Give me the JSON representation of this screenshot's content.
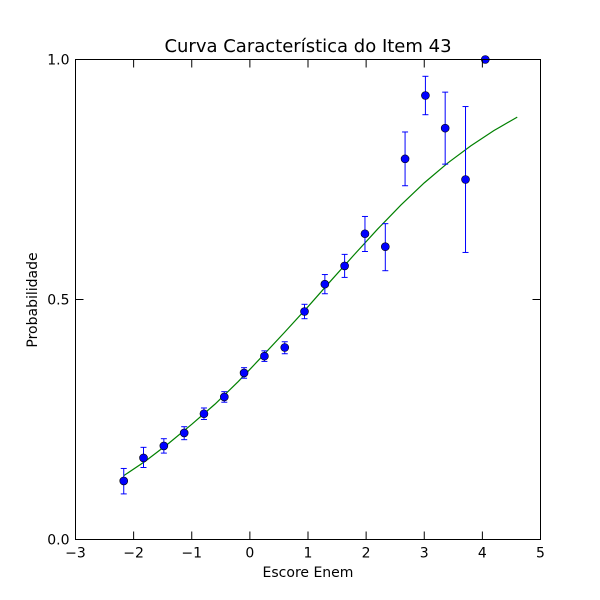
{
  "chart_data": {
    "type": "scatter",
    "title": "Curva Característica do Item 43",
    "xlabel": "Escore Enem",
    "ylabel": "Probabilidade",
    "xlim": [
      -3,
      5
    ],
    "ylim": [
      0.0,
      1.0
    ],
    "x_ticks": [
      -3,
      -2,
      -1,
      0,
      1,
      2,
      3,
      4,
      5
    ],
    "x_tick_labels": [
      "−3",
      "−2",
      "−1",
      "0",
      "1",
      "2",
      "3",
      "4",
      "5"
    ],
    "y_ticks": [
      0.0,
      0.5,
      1.0
    ],
    "y_tick_labels": [
      "0.0",
      "0.5",
      "1.0"
    ],
    "grid": false,
    "series": [
      {
        "kind": "errorbar-scatter",
        "color": "#0000ff",
        "points": [
          {
            "x": -2.17,
            "y": 0.122,
            "lo": 0.095,
            "hi": 0.148
          },
          {
            "x": -1.83,
            "y": 0.17,
            "lo": 0.15,
            "hi": 0.192
          },
          {
            "x": -1.48,
            "y": 0.195,
            "lo": 0.18,
            "hi": 0.21
          },
          {
            "x": -1.13,
            "y": 0.222,
            "lo": 0.208,
            "hi": 0.235
          },
          {
            "x": -0.79,
            "y": 0.262,
            "lo": 0.25,
            "hi": 0.274
          },
          {
            "x": -0.44,
            "y": 0.297,
            "lo": 0.286,
            "hi": 0.308
          },
          {
            "x": -0.1,
            "y": 0.347,
            "lo": 0.336,
            "hi": 0.358
          },
          {
            "x": 0.25,
            "y": 0.382,
            "lo": 0.371,
            "hi": 0.393
          },
          {
            "x": 0.6,
            "y": 0.4,
            "lo": 0.387,
            "hi": 0.412
          },
          {
            "x": 0.94,
            "y": 0.475,
            "lo": 0.46,
            "hi": 0.49
          },
          {
            "x": 1.29,
            "y": 0.532,
            "lo": 0.512,
            "hi": 0.552
          },
          {
            "x": 1.63,
            "y": 0.57,
            "lo": 0.546,
            "hi": 0.594
          },
          {
            "x": 1.98,
            "y": 0.637,
            "lo": 0.6,
            "hi": 0.673
          },
          {
            "x": 2.33,
            "y": 0.61,
            "lo": 0.56,
            "hi": 0.658
          },
          {
            "x": 2.67,
            "y": 0.793,
            "lo": 0.737,
            "hi": 0.849
          },
          {
            "x": 3.02,
            "y": 0.925,
            "lo": 0.885,
            "hi": 0.965
          },
          {
            "x": 3.36,
            "y": 0.857,
            "lo": 0.782,
            "hi": 0.932
          },
          {
            "x": 3.71,
            "y": 0.75,
            "lo": 0.598,
            "hi": 0.902
          },
          {
            "x": 4.05,
            "y": 1.0,
            "lo": 1.0,
            "hi": 1.0
          }
        ]
      },
      {
        "kind": "line",
        "color": "#008000",
        "x": [
          -2.17,
          -1.8,
          -1.4,
          -1.0,
          -0.6,
          -0.2,
          0.2,
          0.6,
          1.0,
          1.4,
          1.8,
          2.2,
          2.6,
          3.0,
          3.4,
          3.8,
          4.2,
          4.6
        ],
        "y": [
          0.133,
          0.163,
          0.2,
          0.24,
          0.282,
          0.329,
          0.38,
          0.432,
          0.485,
          0.54,
          0.594,
          0.647,
          0.697,
          0.743,
          0.784,
          0.82,
          0.852,
          0.88
        ]
      }
    ]
  }
}
